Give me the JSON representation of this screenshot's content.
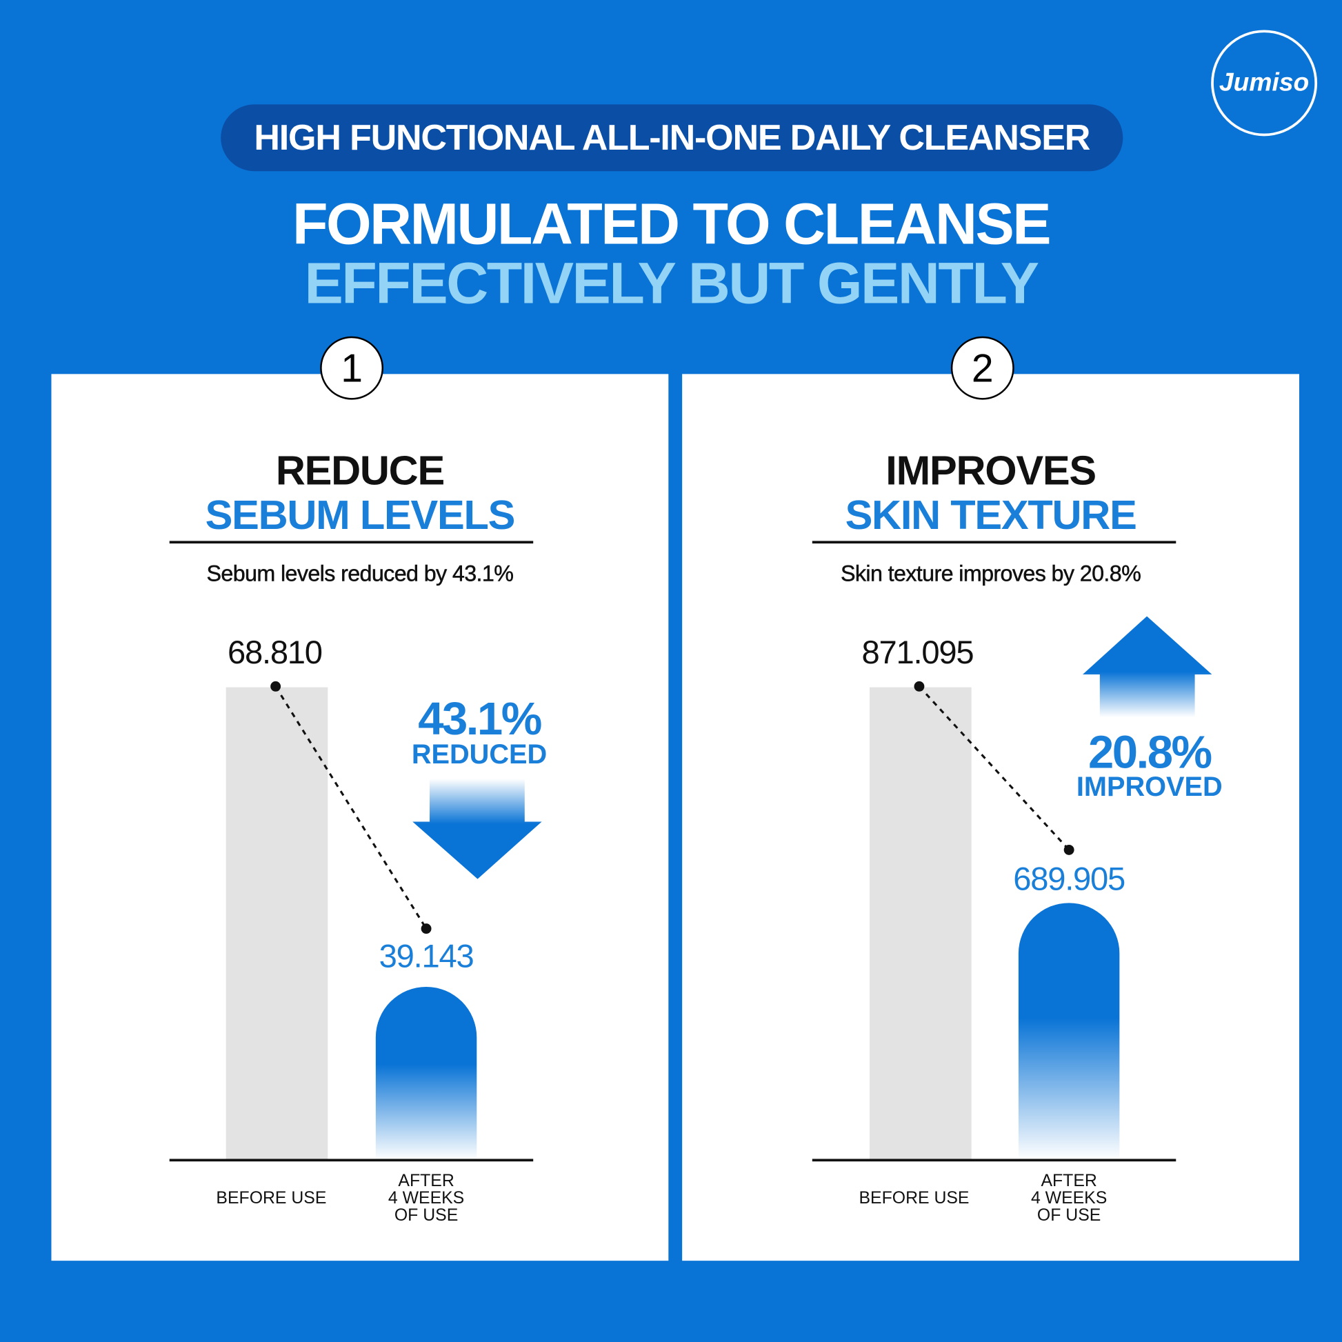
{
  "header": {
    "pill": "HIGH FUNCTIONAL ALL-IN-ONE DAILY CLEANSER",
    "title_line1": "FORMULATED TO CLEANSE",
    "title_line2": "EFFECTIVELY BUT GENTLY",
    "logo": "Jumiso"
  },
  "colors": {
    "background": "#0a74d6",
    "pill": "#0b4ea6",
    "accent": "#1a7fd9",
    "title_highlight": "#93d3f6",
    "before_bar": "#e3e3e3"
  },
  "panels": [
    {
      "number": "1",
      "heading": "REDUCE",
      "subheading": "SEBUM LEVELS",
      "subtitle": "Sebum levels reduced by 43.1%",
      "before_value": "68.810",
      "after_value": "39.143",
      "change_value": "43.1%",
      "change_label": "REDUCED",
      "arrow": "arrow-down-icon",
      "before_label": "BEFORE USE",
      "after_label": [
        "AFTER",
        "4 WEEKS",
        "OF USE"
      ]
    },
    {
      "number": "2",
      "heading": "IMPROVES",
      "subheading": "SKIN TEXTURE",
      "subtitle": "Skin texture improves by 20.8%",
      "before_value": "871.095",
      "after_value": "689.905",
      "change_value": "20.8%",
      "change_label": "IMPROVED",
      "arrow": "arrow-up-icon",
      "before_label": "BEFORE USE",
      "after_label": [
        "AFTER",
        "4 WEEKS",
        "OF USE"
      ]
    }
  ],
  "chart_data": [
    {
      "type": "bar",
      "title": "REDUCE SEBUM LEVELS",
      "categories": [
        "BEFORE USE",
        "AFTER 4 WEEKS OF USE"
      ],
      "values": [
        68.81,
        39.143
      ],
      "annotation": "43.1% REDUCED"
    },
    {
      "type": "bar",
      "title": "IMPROVES SKIN TEXTURE",
      "categories": [
        "BEFORE USE",
        "AFTER 4 WEEKS OF USE"
      ],
      "values": [
        871.095,
        689.905
      ],
      "annotation": "20.8% IMPROVED"
    }
  ]
}
